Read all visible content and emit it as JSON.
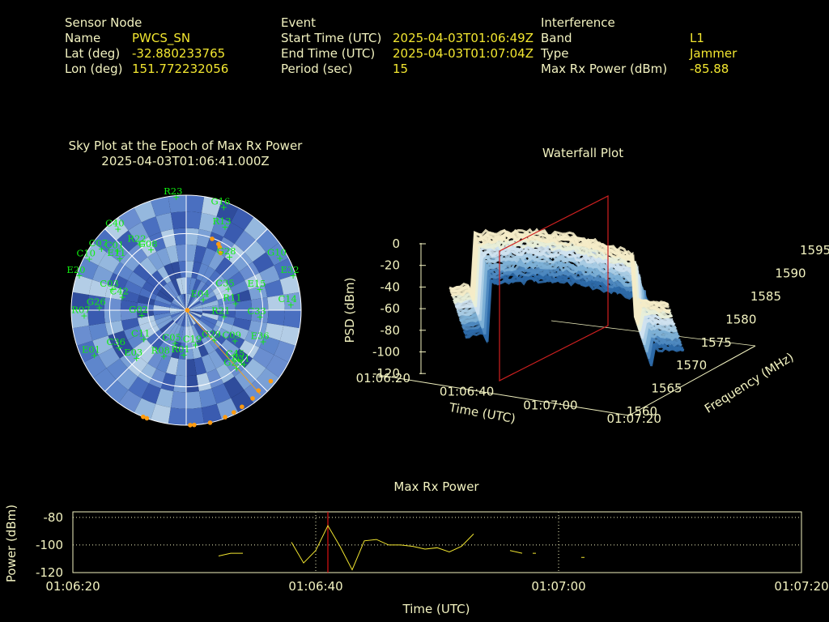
{
  "header": {
    "sensor": {
      "heading": "Sensor Node",
      "rows": [
        {
          "label": "Name",
          "value": "PWCS_SN"
        },
        {
          "label": "Lat (deg)",
          "value": "-32.880233765"
        },
        {
          "label": "Lon (deg)",
          "value": "151.772232056"
        }
      ]
    },
    "event": {
      "heading": "Event",
      "rows": [
        {
          "label": "Start Time (UTC)",
          "value": "2025-04-03T01:06:49Z"
        },
        {
          "label": "End Time (UTC)",
          "value": "2025-04-03T01:07:04Z"
        },
        {
          "label": "Period (sec)",
          "value": "15"
        }
      ]
    },
    "interference": {
      "heading": "Interference",
      "rows": [
        {
          "label": "Band",
          "value": "L1"
        },
        {
          "label": "Type",
          "value": "Jammer"
        },
        {
          "label": "Max Rx Power (dBm)",
          "value": "-85.88"
        }
      ]
    }
  },
  "sky_plot": {
    "title_line1": "Sky Plot at the Epoch of Max Rx Power",
    "title_line2": "2025-04-03T01:06:41.000Z",
    "satellites": [
      {
        "id": "R23",
        "az": 355,
        "el": 1
      },
      {
        "id": "G16",
        "az": 20,
        "el": 4
      },
      {
        "id": "R13",
        "az": 25,
        "el": 18
      },
      {
        "id": "G28",
        "az": 39,
        "el": 36
      },
      {
        "id": "G10",
        "az": 61,
        "el": 6
      },
      {
        "id": "E32",
        "az": 72,
        "el": 2
      },
      {
        "id": "E15",
        "az": 74,
        "el": 30
      },
      {
        "id": "C14",
        "az": 87,
        "el": 8
      },
      {
        "id": "R11",
        "az": 82,
        "el": 51
      },
      {
        "id": "E04",
        "az": 57,
        "el": 74
      },
      {
        "id": "C35",
        "az": 63,
        "el": 53
      },
      {
        "id": "C33",
        "az": 95,
        "el": 32
      },
      {
        "id": "R21",
        "az": 99,
        "el": 60
      },
      {
        "id": "E36",
        "az": 112,
        "el": 25
      },
      {
        "id": "C09",
        "az": 122,
        "el": 45
      },
      {
        "id": "E31",
        "az": 133,
        "el": 28
      },
      {
        "id": "C45",
        "az": 133,
        "el": 34
      },
      {
        "id": "G23",
        "az": 139,
        "el": 30
      },
      {
        "id": "G29",
        "az": 136,
        "el": 58
      },
      {
        "id": "C19",
        "az": 165,
        "el": 62
      },
      {
        "id": "R01",
        "az": 183,
        "el": 55
      },
      {
        "id": "C40",
        "az": 320,
        "el": 7
      },
      {
        "id": "C07",
        "az": 306,
        "el": 8
      },
      {
        "id": "C10",
        "az": 298,
        "el": 4
      },
      {
        "id": "E20",
        "az": 288,
        "el": 2
      },
      {
        "id": "E11",
        "az": 308,
        "el": 24
      },
      {
        "id": "C03",
        "az": 286,
        "el": 30
      },
      {
        "id": "C42",
        "az": 282,
        "el": 39
      },
      {
        "id": "C01",
        "az": 311,
        "el": 19
      },
      {
        "id": "G08",
        "az": 330,
        "el": 35
      },
      {
        "id": "R22",
        "az": 325,
        "el": 27
      },
      {
        "id": "R07",
        "az": 267,
        "el": 10
      },
      {
        "id": "G26",
        "az": 272,
        "el": 22
      },
      {
        "id": "G02",
        "az": 264,
        "el": 55
      },
      {
        "id": "C05",
        "az": 199,
        "el": 63
      },
      {
        "id": "C36",
        "az": 241,
        "el": 30
      },
      {
        "id": "E03",
        "az": 226,
        "el": 36
      },
      {
        "id": "C11",
        "az": 236,
        "el": 50
      },
      {
        "id": "R08",
        "az": 206,
        "el": 50
      },
      {
        "id": "E01",
        "az": 244,
        "el": 10
      }
    ]
  },
  "waterfall": {
    "title": "Waterfall Plot",
    "z_label": "PSD (dBm)",
    "z_ticks": [
      "0",
      "-20",
      "-40",
      "-60",
      "-80",
      "-100",
      "-120"
    ],
    "time_label": "Time (UTC)",
    "time_ticks": [
      "01:06:20",
      "01:06:40",
      "01:07:00",
      "01:07:20"
    ],
    "freq_label": "Frequency (MHz)",
    "freq_ticks": [
      "1560",
      "1565",
      "1570",
      "1575",
      "1580",
      "1585",
      "1590",
      "1595"
    ]
  },
  "power": {
    "title": "Max Rx Power",
    "ylabel": "Power (dBm)",
    "xlabel": "Time (UTC)",
    "yticks": [
      "-80",
      "-100",
      "-120"
    ],
    "xticks": [
      "01:06:20",
      "01:06:40",
      "01:07:00",
      "01:07:20"
    ]
  },
  "chart_data": [
    {
      "type": "line",
      "title": "Max Rx Power",
      "xlabel": "Time (UTC)",
      "ylabel": "Power (dBm)",
      "xlim": [
        "01:06:20",
        "01:07:20"
      ],
      "ylim": [
        -120,
        -76
      ],
      "grid": true,
      "marker_time": "01:06:41",
      "segments": [
        {
          "x": [
            "01:06:32",
            "01:06:33",
            "01:06:34"
          ],
          "y": [
            -108,
            -106,
            -106
          ]
        },
        {
          "x": [
            "01:06:38",
            "01:06:39",
            "01:06:40",
            "01:06:41",
            "01:06:42",
            "01:06:43",
            "01:06:44",
            "01:06:45",
            "01:06:46",
            "01:06:47",
            "01:06:48",
            "01:06:49",
            "01:06:50",
            "01:06:51",
            "01:06:52",
            "01:06:53"
          ],
          "y": [
            -98,
            -113,
            -104,
            -86,
            -101,
            -118,
            -97,
            -96,
            -100,
            -100,
            -101,
            -103,
            -102,
            -105,
            -101,
            -92
          ]
        },
        {
          "x": [
            "01:06:56",
            "01:06:57"
          ],
          "y": [
            -104,
            -106
          ]
        },
        {
          "x": [
            "01:06:58"
          ],
          "y": [
            -106
          ]
        },
        {
          "x": [
            "01:07:02"
          ],
          "y": [
            -109
          ]
        }
      ]
    },
    {
      "type": "heatmap",
      "title": "Waterfall Plot",
      "xlabel": "Time (UTC)",
      "ylabel": "Frequency (MHz)",
      "zlabel": "PSD (dBm)",
      "x_range": [
        "01:06:20",
        "01:07:20"
      ],
      "y_range": [
        1560,
        1595
      ],
      "z_range": [
        -120,
        0
      ]
    }
  ]
}
